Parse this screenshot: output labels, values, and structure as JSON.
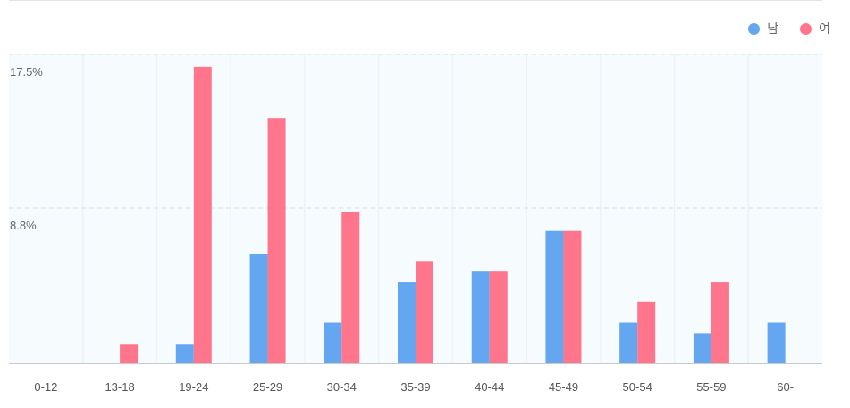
{
  "legend": {
    "male_label": "남",
    "female_label": "여"
  },
  "colors": {
    "male": "#65a6f0",
    "female": "#ff768c",
    "plot_background": "#f6fbfe",
    "gridline": "#dde9f5",
    "axis": "#c9c9c9"
  },
  "chart_data": {
    "type": "bar",
    "categories": [
      "0-12",
      "13-18",
      "19-24",
      "25-29",
      "30-34",
      "35-39",
      "40-44",
      "45-49",
      "50-54",
      "55-59",
      "60-"
    ],
    "series": [
      {
        "name": "남",
        "values": [
          0,
          0,
          1.1,
          6.2,
          2.3,
          4.6,
          5.2,
          7.5,
          2.3,
          1.7,
          2.3
        ]
      },
      {
        "name": "여",
        "values": [
          0,
          1.1,
          16.8,
          13.9,
          8.6,
          5.8,
          5.2,
          7.5,
          3.5,
          4.6,
          0
        ]
      }
    ],
    "yticks": [
      {
        "value": 17.5,
        "label": "17.5%"
      },
      {
        "value": 8.8,
        "label": "8.8%"
      }
    ],
    "ylim": [
      0,
      17.5
    ],
    "grid": true,
    "legend_position": "top-right"
  }
}
